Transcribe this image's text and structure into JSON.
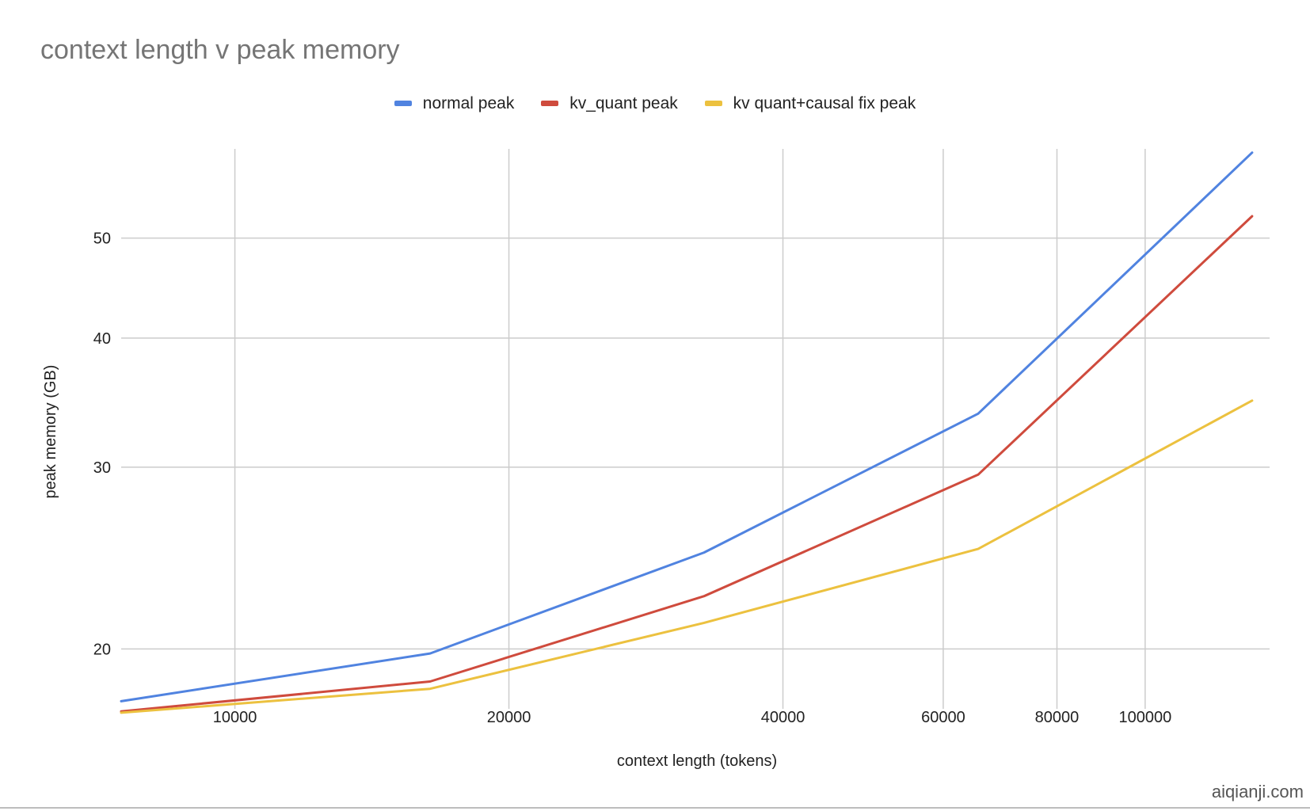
{
  "chart_data": {
    "type": "line",
    "title": "context length v peak memory",
    "xlabel": "context length (tokens)",
    "ylabel": "peak memory (GB)",
    "x_scale": "log",
    "y_scale": "log",
    "xlim": [
      7500,
      137000
    ],
    "ylim": [
      17.5,
      61
    ],
    "x_ticks": [
      10000,
      20000,
      40000,
      60000,
      80000,
      100000
    ],
    "x_tick_labels": [
      "10000",
      "20000",
      "40000",
      "60000",
      "80000",
      "100000"
    ],
    "y_ticks": [
      20,
      30,
      40,
      50
    ],
    "y_tick_labels": [
      "20",
      "30",
      "40",
      "50"
    ],
    "grid": true,
    "legend_position": "top",
    "x": [
      7500,
      16384,
      32768,
      65536,
      131072
    ],
    "series": [
      {
        "name": "normal peak",
        "color": "#5083e0",
        "values": [
          17.8,
          19.8,
          24.8,
          33.8,
          60.5
        ]
      },
      {
        "name": "kv_quant peak",
        "color": "#cf4b3d",
        "values": [
          17.4,
          18.6,
          22.5,
          29.5,
          52.5
        ]
      },
      {
        "name": "kv quant+causal fix peak",
        "color": "#ecc13f",
        "values": [
          17.35,
          18.3,
          21.2,
          25.0,
          34.8
        ]
      }
    ]
  },
  "watermark": "aiqianji.com"
}
